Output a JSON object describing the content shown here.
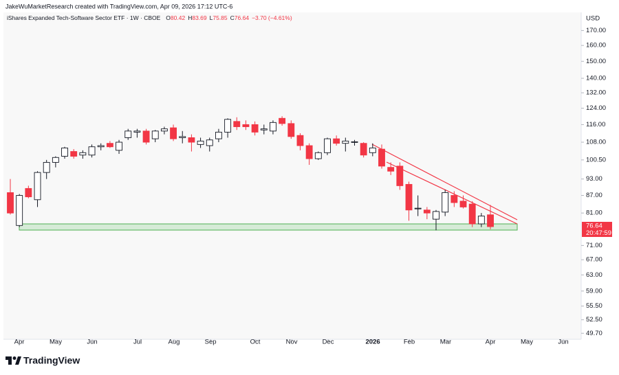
{
  "header": "JakeWuMarketResearch created with TradingView.com, Apr 09, 2026 17:12 UTC-6",
  "brand": "TradingView",
  "chart_data": {
    "type": "candlestick",
    "title": "iShares Expanded Tech-Software Sector ETF · 1W · CBOE",
    "legend_labels": {
      "open": "O",
      "high": "H",
      "low": "L",
      "close": "C"
    },
    "change": "−3.70 (−4.61%)",
    "currency": "USD",
    "countdown": "20:47:59",
    "up_color": "#ffffff",
    "down_color": "#f23645",
    "outline_color": "#131722",
    "log_scale": true,
    "ylim": [
      48.5,
      183
    ],
    "yticks": [
      {
        "value": 170,
        "label": "170.00"
      },
      {
        "value": 160,
        "label": "160.00"
      },
      {
        "value": 150,
        "label": "150.00"
      },
      {
        "value": 140,
        "label": "140.00"
      },
      {
        "value": 132,
        "label": "132.00"
      },
      {
        "value": 124,
        "label": "124.00"
      },
      {
        "value": 116,
        "label": "116.00"
      },
      {
        "value": 108,
        "label": "108.00"
      },
      {
        "value": 100.5,
        "label": "100.50"
      },
      {
        "value": 93,
        "label": "93.00"
      },
      {
        "value": 87,
        "label": "87.00"
      },
      {
        "value": 81,
        "label": "81.00"
      },
      {
        "value": 71,
        "label": "71.00"
      },
      {
        "value": 67,
        "label": "67.00"
      },
      {
        "value": 63,
        "label": "63.00"
      },
      {
        "value": 59,
        "label": "59.00"
      },
      {
        "value": 55.5,
        "label": "55.50"
      },
      {
        "value": 52.5,
        "label": "52.50"
      },
      {
        "value": 49.7,
        "label": "49.70"
      }
    ],
    "xlim": [
      -0.76,
      63.02
    ],
    "xticks": [
      {
        "value": 0.99,
        "label": "Apr"
      },
      {
        "value": 5.01,
        "label": "May"
      },
      {
        "value": 9.04,
        "label": "Jun"
      },
      {
        "value": 14.05,
        "label": "Jul"
      },
      {
        "value": 18.07,
        "label": "Aug"
      },
      {
        "value": 22.1,
        "label": "Sep"
      },
      {
        "value": 27.03,
        "label": "Oct"
      },
      {
        "value": 31.06,
        "label": "Nov"
      },
      {
        "value": 35.08,
        "label": "Dec"
      },
      {
        "value": 40.02,
        "label": "2026"
      },
      {
        "value": 44.04,
        "label": "Feb"
      },
      {
        "value": 48.06,
        "label": "Mar"
      },
      {
        "value": 53.0,
        "label": "Apr"
      },
      {
        "value": 57.02,
        "label": "May"
      },
      {
        "value": 61.05,
        "label": "Jun"
      }
    ],
    "candles": [
      {
        "open": 88,
        "high": 93,
        "low": 80.5,
        "close": 81
      },
      {
        "open": 77,
        "high": 87.5,
        "low": 76.5,
        "close": 87
      },
      {
        "open": 89.5,
        "high": 90.5,
        "low": 86,
        "close": 86.5
      },
      {
        "open": 85.5,
        "high": 96,
        "low": 83,
        "close": 95.5
      },
      {
        "open": 95.5,
        "high": 100.5,
        "low": 93,
        "close": 99.5
      },
      {
        "open": 99.5,
        "high": 102,
        "low": 97.5,
        "close": 101.5
      },
      {
        "open": 102,
        "high": 106,
        "low": 101,
        "close": 105.5
      },
      {
        "open": 104,
        "high": 105,
        "low": 101,
        "close": 102
      },
      {
        "open": 102.5,
        "high": 104.5,
        "low": 101,
        "close": 103.5
      },
      {
        "open": 102.5,
        "high": 107,
        "low": 101.5,
        "close": 106
      },
      {
        "open": 106,
        "high": 107.5,
        "low": 104.5,
        "close": 106.5
      },
      {
        "open": 107.5,
        "high": 108.5,
        "low": 105.5,
        "close": 106
      },
      {
        "open": 104.5,
        "high": 109,
        "low": 103,
        "close": 108
      },
      {
        "open": 110,
        "high": 114,
        "low": 109,
        "close": 113
      },
      {
        "open": 112.5,
        "high": 114,
        "low": 110,
        "close": 113
      },
      {
        "open": 113,
        "high": 114,
        "low": 107,
        "close": 108
      },
      {
        "open": 109.5,
        "high": 113.5,
        "low": 108,
        "close": 113
      },
      {
        "open": 113,
        "high": 115,
        "low": 111.5,
        "close": 114
      },
      {
        "open": 114.5,
        "high": 116,
        "low": 108.5,
        "close": 109.5
      },
      {
        "open": 110,
        "high": 113,
        "low": 107.5,
        "close": 110.5
      },
      {
        "open": 110,
        "high": 111.5,
        "low": 104,
        "close": 108
      },
      {
        "open": 107,
        "high": 110,
        "low": 105.5,
        "close": 108.5
      },
      {
        "open": 106.5,
        "high": 110,
        "low": 104,
        "close": 109
      },
      {
        "open": 109.5,
        "high": 114,
        "low": 108,
        "close": 112.5
      },
      {
        "open": 112.5,
        "high": 119,
        "low": 110,
        "close": 118.5
      },
      {
        "open": 117.5,
        "high": 119.5,
        "low": 113.5,
        "close": 115
      },
      {
        "open": 116,
        "high": 118,
        "low": 113.5,
        "close": 115
      },
      {
        "open": 116,
        "high": 117.5,
        "low": 111,
        "close": 112.5
      },
      {
        "open": 113.5,
        "high": 116,
        "low": 111.5,
        "close": 114
      },
      {
        "open": 113,
        "high": 118,
        "low": 111.5,
        "close": 117
      },
      {
        "open": 119,
        "high": 120,
        "low": 115.5,
        "close": 116.5
      },
      {
        "open": 116.5,
        "high": 118,
        "low": 109.5,
        "close": 110.5
      },
      {
        "open": 111,
        "high": 112,
        "low": 104.5,
        "close": 106.5
      },
      {
        "open": 106.5,
        "high": 107.5,
        "low": 98.5,
        "close": 101
      },
      {
        "open": 101,
        "high": 104,
        "low": 100.5,
        "close": 103.5
      },
      {
        "open": 103.5,
        "high": 110,
        "low": 102.5,
        "close": 109.5
      },
      {
        "open": 109.5,
        "high": 111,
        "low": 106.5,
        "close": 107.5
      },
      {
        "open": 107.5,
        "high": 110,
        "low": 104,
        "close": 108.5
      },
      {
        "open": 108,
        "high": 109,
        "low": 106.5,
        "close": 108.2
      },
      {
        "open": 107.5,
        "high": 108,
        "low": 101.5,
        "close": 102.5
      },
      {
        "open": 103.5,
        "high": 107.5,
        "low": 102,
        "close": 105.5
      },
      {
        "open": 105,
        "high": 107,
        "low": 97,
        "close": 98
      },
      {
        "open": 97.5,
        "high": 99.5,
        "low": 94.5,
        "close": 96
      },
      {
        "open": 98,
        "high": 99.5,
        "low": 89,
        "close": 90.5
      },
      {
        "open": 91,
        "high": 92,
        "low": 78.5,
        "close": 82
      },
      {
        "open": 82.5,
        "high": 87,
        "low": 80,
        "close": 82.6
      },
      {
        "open": 82,
        "high": 83,
        "low": 79,
        "close": 81
      },
      {
        "open": 79,
        "high": 82,
        "low": 75.5,
        "close": 81.5
      },
      {
        "open": 81.3,
        "high": 89,
        "low": 80,
        "close": 88
      },
      {
        "open": 87,
        "high": 88.5,
        "low": 83,
        "close": 84.5
      },
      {
        "open": 85,
        "high": 87,
        "low": 82.5,
        "close": 83
      },
      {
        "open": 84,
        "high": 85,
        "low": 76.5,
        "close": 77.5
      },
      {
        "open": 77.5,
        "high": 81,
        "low": 76.5,
        "close": 80
      },
      {
        "open": 80.42,
        "high": 83.69,
        "low": 75.85,
        "close": 76.64
      }
    ]
  }
}
